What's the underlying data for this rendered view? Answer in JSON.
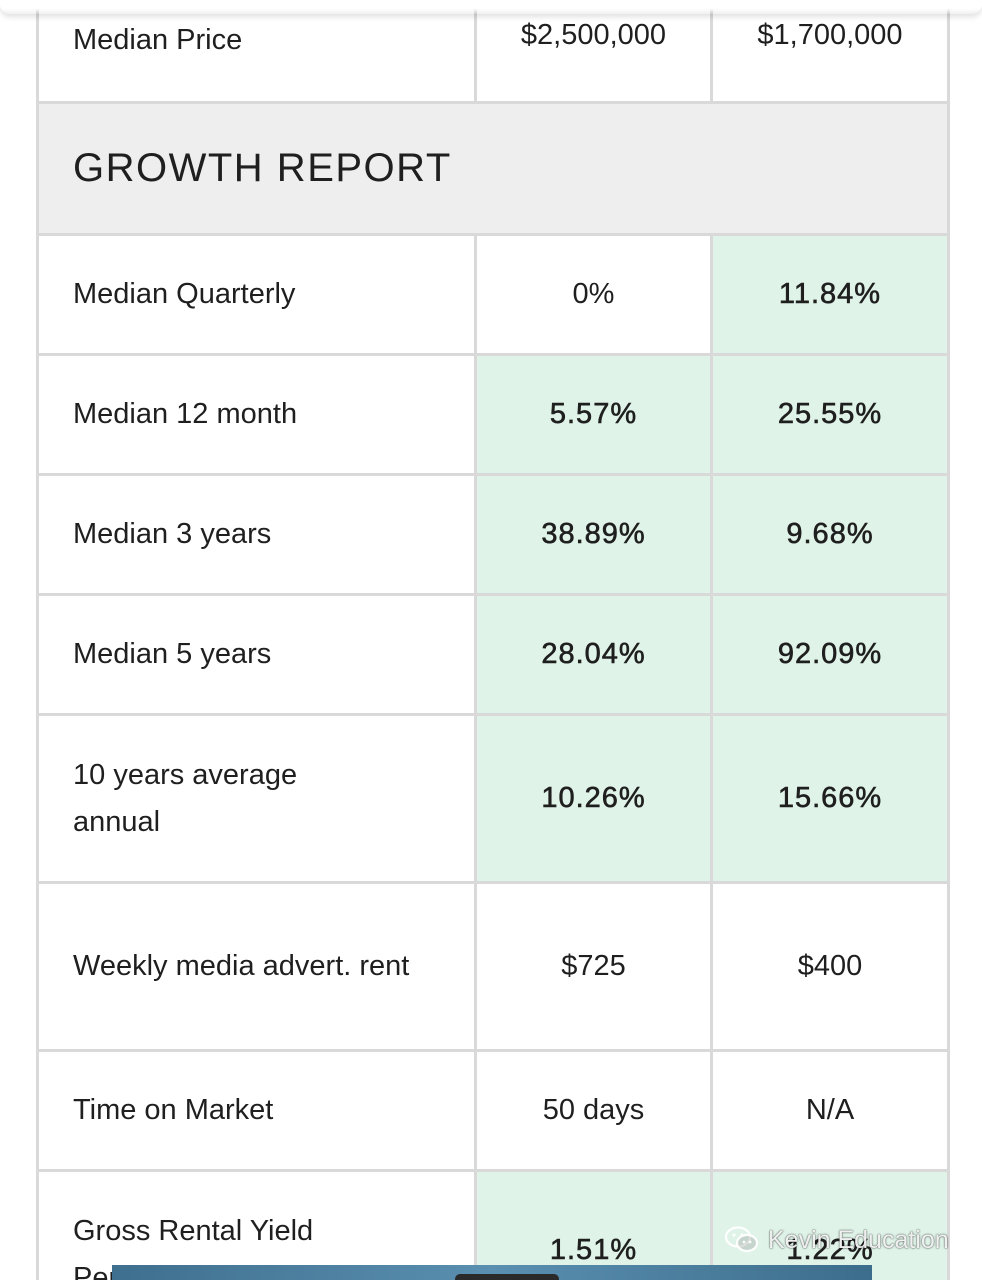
{
  "table": {
    "median_price": {
      "label": "Median Price",
      "col1": "$2,500,000",
      "col2": "$1,700,000"
    },
    "section_title": "GROWTH REPORT",
    "rows": [
      {
        "label": "Median Quarterly",
        "col1": "0%",
        "col2": "11.84%"
      },
      {
        "label": "Median 12 month",
        "col1": "5.57%",
        "col2": "25.55%"
      },
      {
        "label": "Median 3 years",
        "col1": "38.89%",
        "col2": "9.68%"
      },
      {
        "label": "Median 5 years",
        "col1": "28.04%",
        "col2": "92.09%"
      },
      {
        "label": "10 years average annual",
        "col1": "10.26%",
        "col2": "15.66%"
      },
      {
        "label": "Weekly media advert. rent",
        "col1": "$725",
        "col2": "$400"
      },
      {
        "label": "Time on Market",
        "col1": "50 days",
        "col2": "N/A"
      },
      {
        "label": "Gross Rental Yield Percent",
        "col1": "1.51%",
        "col2": "1.22%"
      }
    ]
  },
  "colors": {
    "highlight_green": "#dff3e8",
    "section_gray": "#eeeeee",
    "border_gray": "#d9d9d9"
  },
  "watermark": {
    "icon": "wechat-icon",
    "text": "Kevin Education"
  }
}
